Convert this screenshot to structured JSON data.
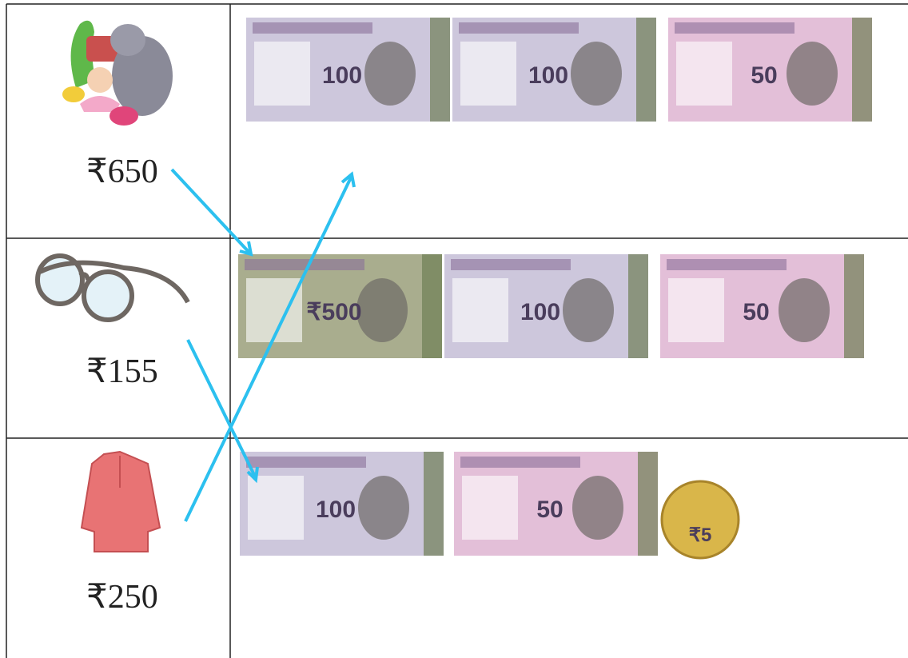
{
  "rows": [
    {
      "price": "₹650",
      "notes": [
        {
          "label": "100",
          "color": "#cdc7dc"
        },
        {
          "label": "100",
          "color": "#cdc7dc"
        },
        {
          "label": "50",
          "color": "#e3bfd8"
        }
      ]
    },
    {
      "price": "₹155",
      "notes": [
        {
          "label": "₹500",
          "color": "#a9ad8e"
        },
        {
          "label": "100",
          "color": "#cdc7dc"
        },
        {
          "label": "50",
          "color": "#e3bfd8"
        }
      ]
    },
    {
      "price": "₹250",
      "notes": [
        {
          "label": "100",
          "color": "#cdc7dc"
        },
        {
          "label": "50",
          "color": "#e3bfd8"
        },
        {
          "label": "₹5",
          "color": "#d9b64a",
          "shape": "coin"
        }
      ]
    }
  ]
}
